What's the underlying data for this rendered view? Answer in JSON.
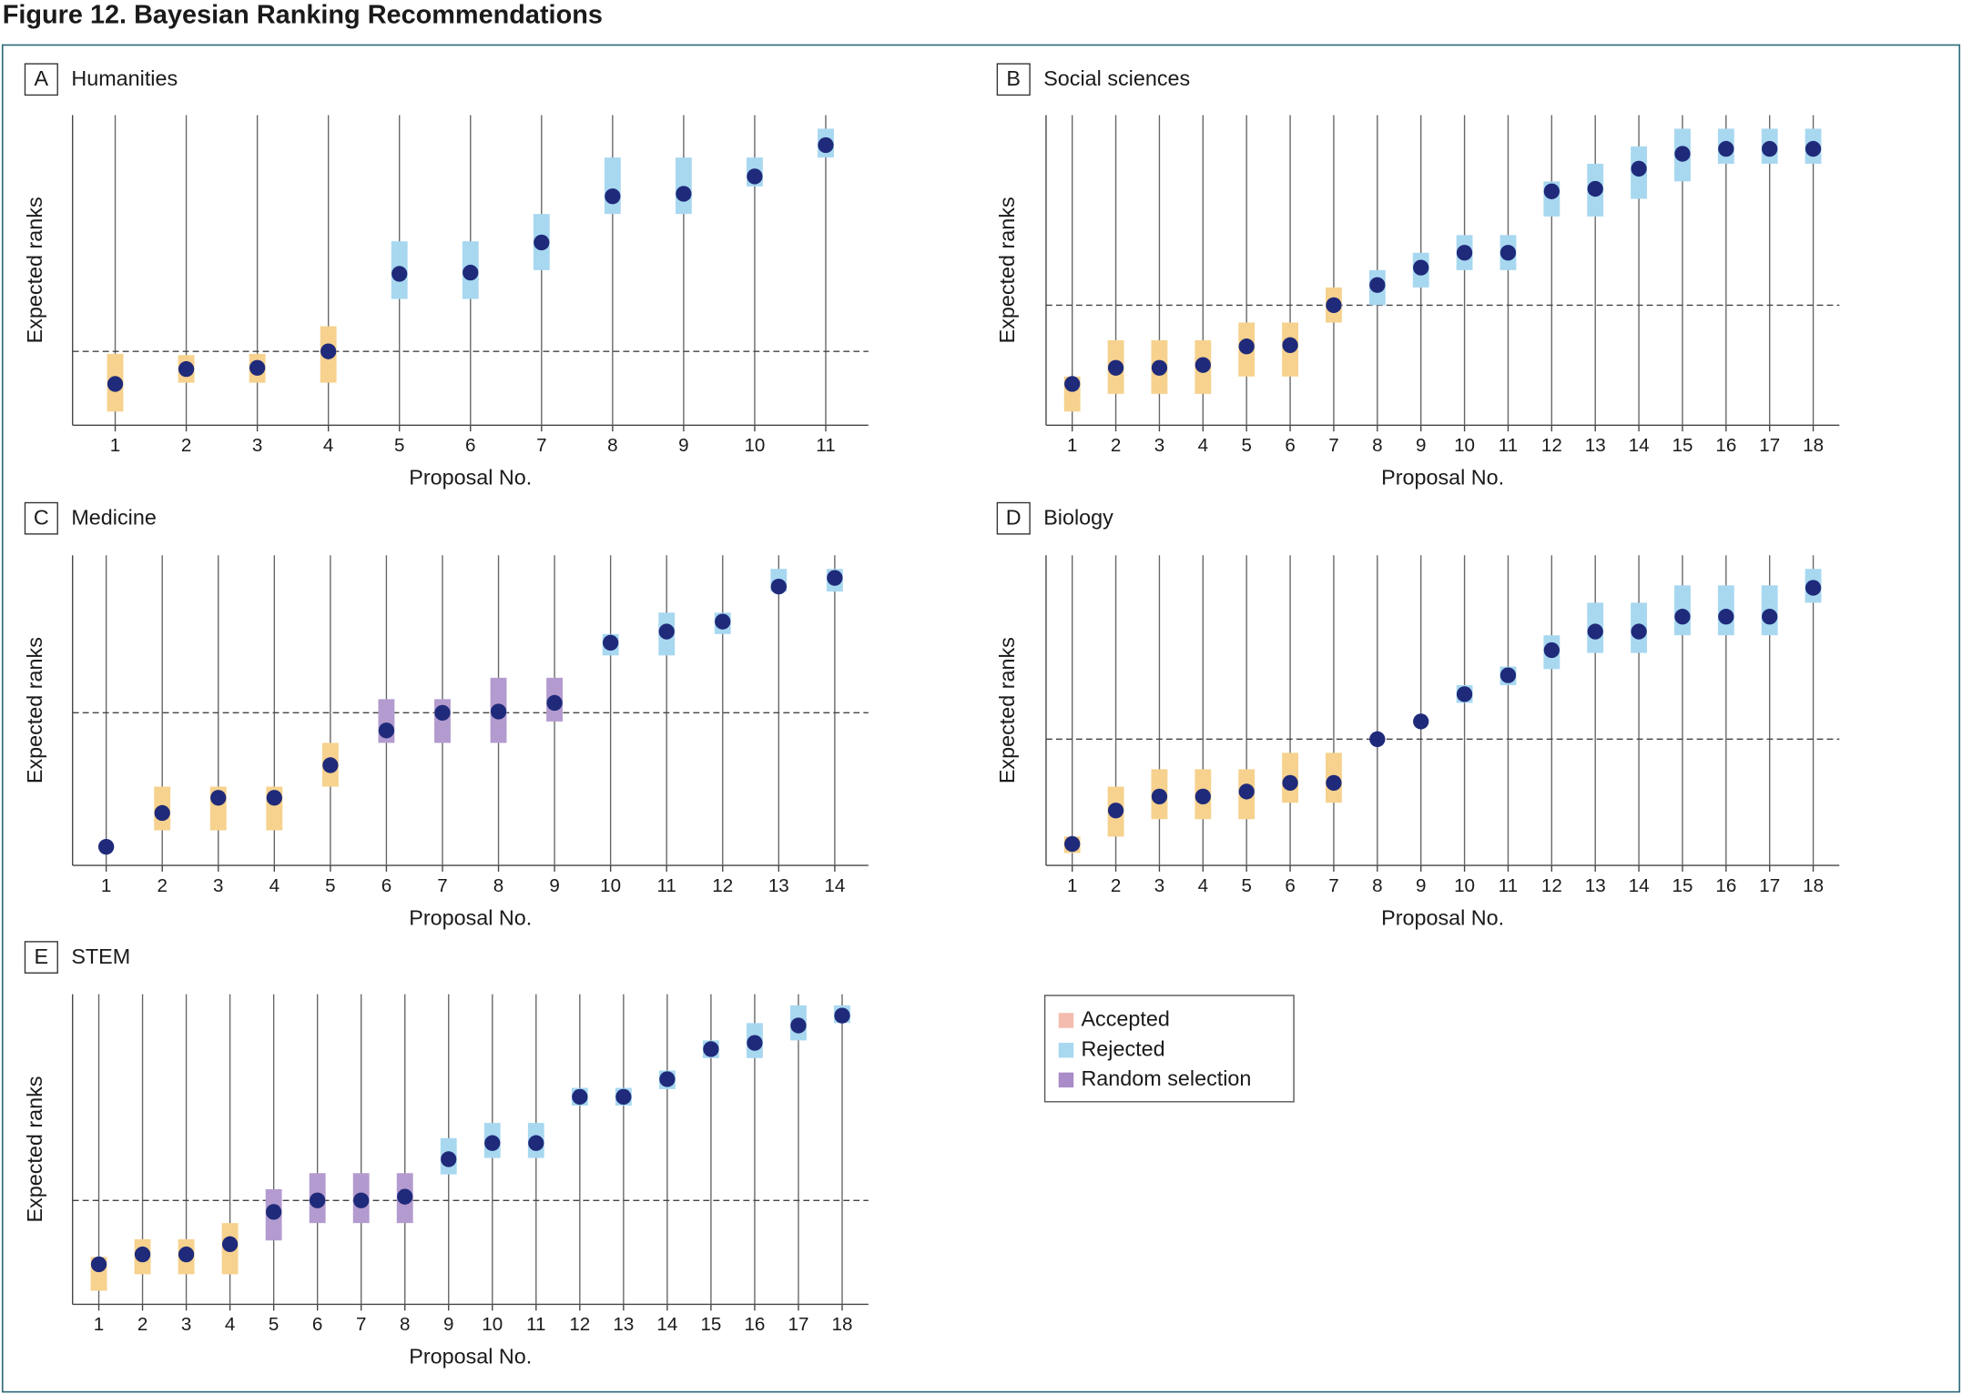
{
  "title": "Figure 12. Bayesian Ranking Recommendations",
  "legend": [
    {
      "name": "Accepted",
      "color": "#f4bcae",
      "mark_color": "#f6d28e"
    },
    {
      "name": "Rejected",
      "color": "#a8d8f0",
      "mark_color": "#a8d8f0"
    },
    {
      "name": "Random selection",
      "color": "#a98cc8",
      "mark_color": "#b39bcf"
    }
  ],
  "chart_data": [
    {
      "type": "dot-interval",
      "label": "A",
      "title": "Humanities",
      "xlabel": "Proposal No.",
      "ylabel": "Expected ranks",
      "categories": [
        1,
        2,
        3,
        4,
        5,
        6,
        7,
        8,
        9,
        10,
        11
      ],
      "values": [
        13.3,
        18.1,
        18.5,
        23.8,
        48.8,
        49.2,
        58.9,
        73.8,
        74.6,
        80.2,
        90.3
      ],
      "low": [
        4.4,
        13.7,
        13.7,
        13.7,
        40.7,
        40.7,
        50.0,
        68.1,
        68.1,
        77.0,
        86.3
      ],
      "high": [
        23.0,
        22.6,
        23.0,
        31.9,
        59.3,
        59.3,
        68.1,
        86.3,
        86.3,
        86.3,
        95.6
      ],
      "groups": [
        0,
        0,
        0,
        0,
        1,
        1,
        1,
        1,
        1,
        1,
        1
      ],
      "threshold": 23.8,
      "ylim": [
        0,
        100
      ],
      "dot_color": "#1f2a7a"
    },
    {
      "type": "dot-interval",
      "label": "B",
      "title": "Social sciences",
      "xlabel": "Proposal No.",
      "ylabel": "Expected ranks",
      "categories": [
        1,
        2,
        3,
        4,
        5,
        6,
        7,
        8,
        9,
        10,
        11,
        12,
        13,
        14,
        15,
        16,
        17,
        18
      ],
      "values": [
        13.3,
        18.5,
        18.5,
        19.4,
        25.4,
        25.8,
        38.7,
        45.2,
        50.8,
        55.6,
        55.6,
        75.4,
        76.2,
        82.7,
        87.5,
        89.1,
        89.1,
        89.1
      ],
      "low": [
        4.4,
        10.1,
        10.1,
        10.1,
        15.7,
        15.7,
        33.1,
        38.7,
        44.4,
        50.0,
        50.0,
        67.3,
        67.3,
        73.0,
        78.6,
        84.3,
        84.3,
        84.3
      ],
      "high": [
        15.7,
        27.4,
        27.4,
        27.4,
        33.1,
        33.1,
        44.4,
        50.0,
        55.6,
        61.3,
        61.3,
        78.6,
        84.3,
        89.9,
        95.6,
        95.6,
        95.6,
        95.6
      ],
      "groups": [
        0,
        0,
        0,
        0,
        0,
        0,
        0,
        1,
        1,
        1,
        1,
        1,
        1,
        1,
        1,
        1,
        1,
        1
      ],
      "threshold": 38.7,
      "ylim": [
        0,
        100
      ],
      "dot_color": "#1f2a7a"
    },
    {
      "type": "dot-interval",
      "label": "C",
      "title": "Medicine",
      "xlabel": "Proposal No.",
      "ylabel": "Expected ranks",
      "categories": [
        1,
        2,
        3,
        4,
        5,
        6,
        7,
        8,
        9,
        10,
        11,
        12,
        13,
        14
      ],
      "values": [
        6.0,
        16.9,
        21.8,
        21.8,
        32.3,
        43.5,
        49.2,
        49.6,
        52.4,
        71.8,
        75.4,
        78.6,
        89.9,
        92.7
      ],
      "low": [
        6.0,
        11.3,
        11.3,
        11.3,
        25.4,
        39.5,
        39.5,
        39.5,
        46.4,
        67.7,
        67.7,
        74.6,
        88.3,
        88.3
      ],
      "high": [
        6.0,
        25.4,
        25.4,
        25.4,
        39.5,
        53.6,
        53.6,
        60.5,
        60.5,
        74.6,
        81.5,
        81.5,
        95.6,
        95.6
      ],
      "groups": [
        0,
        0,
        0,
        0,
        0,
        2,
        2,
        2,
        2,
        1,
        1,
        1,
        1,
        1
      ],
      "threshold": 49.2,
      "ylim": [
        0,
        100
      ],
      "dot_color": "#1f2a7a"
    },
    {
      "type": "dot-interval",
      "label": "D",
      "title": "Biology",
      "xlabel": "Proposal No.",
      "ylabel": "Expected ranks",
      "categories": [
        1,
        2,
        3,
        4,
        5,
        6,
        7,
        8,
        9,
        10,
        11,
        12,
        13,
        14,
        15,
        16,
        17,
        18
      ],
      "values": [
        6.9,
        17.7,
        22.2,
        22.2,
        23.8,
        26.6,
        26.6,
        40.7,
        46.4,
        55.2,
        61.3,
        69.4,
        75.4,
        75.4,
        80.2,
        80.2,
        80.2,
        89.5
      ],
      "low": [
        4.0,
        9.3,
        14.9,
        14.9,
        14.9,
        20.2,
        20.2,
        40.7,
        46.4,
        52.4,
        58.1,
        63.3,
        68.5,
        68.5,
        74.2,
        74.2,
        74.2,
        84.7
      ],
      "high": [
        9.3,
        25.4,
        31.0,
        31.0,
        31.0,
        36.3,
        36.3,
        40.7,
        46.4,
        58.1,
        64.1,
        74.2,
        84.7,
        84.7,
        90.3,
        90.3,
        90.3,
        95.6
      ],
      "groups": [
        0,
        0,
        0,
        0,
        0,
        0,
        0,
        1,
        1,
        1,
        1,
        1,
        1,
        1,
        1,
        1,
        1,
        1
      ],
      "threshold": 40.7,
      "ylim": [
        0,
        100
      ],
      "dot_color": "#1f2a7a"
    },
    {
      "type": "dot-interval",
      "label": "E",
      "title": "STEM",
      "xlabel": "Proposal No.",
      "ylabel": "Expected ranks",
      "categories": [
        1,
        2,
        3,
        4,
        5,
        6,
        7,
        8,
        9,
        10,
        11,
        12,
        13,
        14,
        15,
        16,
        17,
        18
      ],
      "values": [
        12.9,
        16.1,
        16.1,
        19.4,
        29.8,
        33.5,
        33.5,
        34.7,
        46.8,
        52.0,
        52.0,
        66.9,
        66.9,
        72.6,
        82.3,
        84.3,
        89.9,
        93.1
      ],
      "low": [
        4.4,
        9.7,
        9.7,
        9.7,
        20.6,
        26.2,
        26.2,
        26.2,
        41.9,
        47.2,
        47.2,
        64.1,
        64.1,
        69.4,
        79.4,
        79.4,
        85.1,
        90.7
      ],
      "high": [
        15.3,
        21.0,
        21.0,
        26.2,
        37.1,
        42.3,
        42.3,
        42.3,
        53.6,
        58.5,
        58.5,
        69.8,
        69.8,
        75.4,
        85.1,
        90.7,
        96.4,
        96.4
      ],
      "groups": [
        0,
        0,
        0,
        0,
        2,
        2,
        2,
        2,
        1,
        1,
        1,
        1,
        1,
        1,
        1,
        1,
        1,
        1
      ],
      "threshold": 33.5,
      "ylim": [
        0,
        100
      ],
      "dot_color": "#1f2a7a"
    }
  ]
}
